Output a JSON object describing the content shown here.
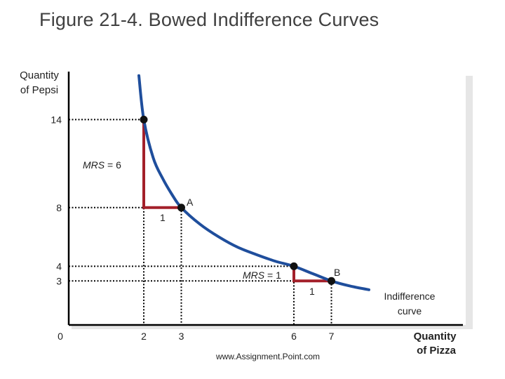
{
  "figure": {
    "title": "Figure 21-4. Bowed Indifference Curves",
    "watermark": "www.Assignment.Point.com"
  },
  "chart_data": {
    "type": "line",
    "ylabel_lines": [
      "Quantity",
      "of Pepsi"
    ],
    "xlabel_lines": [
      "Quantity",
      "of Pizza"
    ],
    "x_ticks": [
      "0",
      "2",
      "3",
      "6",
      "7"
    ],
    "y_ticks": [
      "14",
      "8",
      "4",
      "3"
    ],
    "series": [
      {
        "x": [
          1.87,
          2.0,
          2.25,
          2.5,
          2.75,
          3.0,
          3.5,
          4.0,
          4.5,
          5.0,
          5.5,
          6.0,
          6.5,
          7.0,
          7.5,
          8.0
        ],
        "y": [
          17.0,
          14.0,
          11.4,
          10.0,
          8.9,
          8.0,
          6.86,
          6.0,
          5.3,
          4.8,
          4.35,
          4.0,
          3.5,
          3.0,
          2.65,
          2.4
        ]
      }
    ],
    "points": [
      {
        "x": 2,
        "y": 14,
        "label": ""
      },
      {
        "x": 3,
        "y": 8,
        "label": "A"
      },
      {
        "x": 6,
        "y": 4,
        "label": ""
      },
      {
        "x": 7,
        "y": 3,
        "label": "B"
      }
    ],
    "annotations": {
      "mrs_a": {
        "prefix": "MRS",
        "rest": " = 6"
      },
      "run_a": "1",
      "mrs_b": {
        "prefix": "MRS",
        "rest": " = 1"
      },
      "run_b": "1",
      "curve_label_lines": [
        "Indifference",
        "curve"
      ]
    },
    "xlim": [
      0,
      8
    ],
    "ylim": [
      0,
      18
    ],
    "colors": {
      "curve": "#1f4e9c",
      "mrs_lines": "#a3202a",
      "points": "#111111"
    }
  }
}
